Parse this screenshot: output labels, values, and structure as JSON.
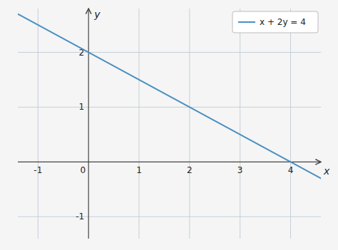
{
  "chart_data": {
    "type": "line",
    "x": [
      -1.4,
      4.6
    ],
    "series": [
      {
        "name": "x + 2y = 4",
        "color": "#4a8fc0",
        "values": [
          2.7,
          -0.3
        ]
      }
    ],
    "xlim": [
      -1.4,
      4.6
    ],
    "ylim": [
      -1.4,
      2.8
    ],
    "xticks": [
      -1,
      0,
      1,
      2,
      3,
      4
    ],
    "yticks": [
      -1,
      1,
      2
    ],
    "xlabel": "x",
    "ylabel": "y",
    "grid": true,
    "legend": "upper right"
  }
}
